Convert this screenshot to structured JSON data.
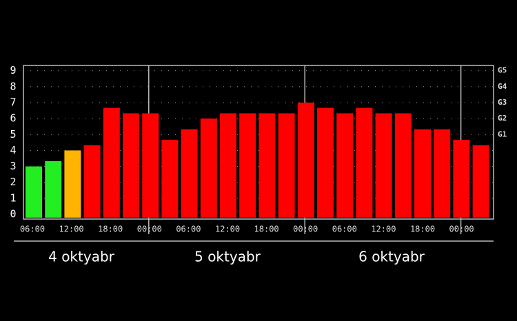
{
  "chart_data": {
    "type": "bar",
    "values": [
      3,
      3.33,
      4,
      4.33,
      6.67,
      6.33,
      6.33,
      4.67,
      5.33,
      6,
      6.33,
      6.33,
      6.33,
      6.33,
      7,
      6.67,
      6.33,
      6.67,
      6.33,
      6.33,
      5.33,
      5.33,
      4.67,
      4.33
    ],
    "colors": [
      "#22ee22",
      "#22ee22",
      "#ffb400",
      "#ff0000",
      "#ff0000",
      "#ff0000",
      "#ff0000",
      "#ff0000",
      "#ff0000",
      "#ff0000",
      "#ff0000",
      "#ff0000",
      "#ff0000",
      "#ff0000",
      "#ff0000",
      "#ff0000",
      "#ff0000",
      "#ff0000",
      "#ff0000",
      "#ff0000",
      "#ff0000",
      "#ff0000",
      "#ff0000",
      "#ff0000"
    ],
    "ylim": [
      -0.3,
      9.33
    ],
    "yticks": [
      0,
      1,
      2,
      3,
      4,
      5,
      6,
      7,
      8,
      9
    ],
    "y2ticks": [
      {
        "value": 5,
        "label": "G1"
      },
      {
        "value": 6,
        "label": "G2"
      },
      {
        "value": 7,
        "label": "G3"
      },
      {
        "value": 8,
        "label": "G4"
      },
      {
        "value": 9,
        "label": "G5"
      }
    ],
    "x_labels": [
      "06:00",
      "12:00",
      "18:00",
      "00:00",
      "06:00",
      "12:00",
      "18:00",
      "00:00",
      "06:00",
      "12:00",
      "18:00",
      "00:00"
    ],
    "days": [
      "4 oktyabr",
      "5 oktyabr",
      "6 oktyabr"
    ],
    "grid": true
  }
}
